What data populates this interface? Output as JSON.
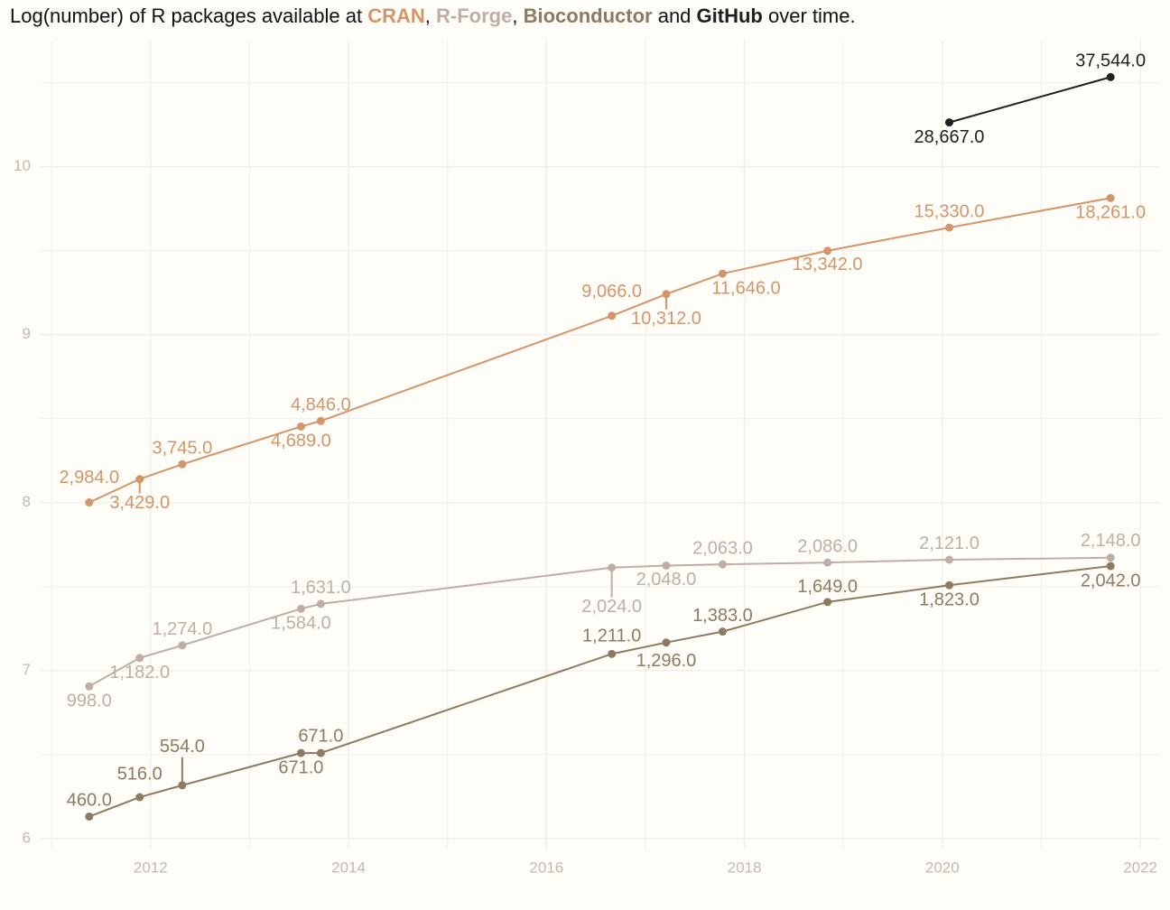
{
  "chart_data": {
    "type": "line",
    "title": [
      "Log(number) of R packages available at ",
      ", ",
      ", ",
      " and ",
      " over time."
    ],
    "xlim": [
      2010.88,
      2022.2
    ],
    "ylim": [
      5.94,
      10.75
    ],
    "xticks": [
      2012,
      2014,
      2016,
      2018,
      2020,
      2022
    ],
    "yticks": [
      6,
      7,
      8,
      9,
      10
    ],
    "grid": true,
    "series": [
      {
        "name": "CRAN",
        "color": "#d4956a",
        "x": [
          2011.38,
          2011.89,
          2012.32,
          2013.52,
          2013.72,
          2016.66,
          2017.21,
          2017.78,
          2018.84,
          2020.07,
          2021.7
        ],
        "values": [
          8.001,
          8.14,
          8.228,
          8.453,
          8.486,
          9.112,
          9.241,
          9.363,
          9.499,
          9.637,
          9.813
        ],
        "value_labels": [
          "2,984.0",
          "3,429.0",
          "3,745.0",
          "4,689.0",
          "4,846.0",
          "9,066.0",
          "10,312.0",
          "11,646.0",
          "13,342.0",
          "15,330.0",
          "18,261.0"
        ]
      },
      {
        "name": "R-Forge",
        "color": "#bfaea8",
        "x": [
          2011.38,
          2011.89,
          2012.32,
          2013.52,
          2013.72,
          2016.66,
          2017.21,
          2017.78,
          2018.84,
          2020.07,
          2021.7
        ],
        "values": [
          6.906,
          7.075,
          7.15,
          7.368,
          7.397,
          7.613,
          7.625,
          7.632,
          7.643,
          7.66,
          7.672
        ],
        "value_labels": [
          "998.0",
          "1,182.0",
          "1,274.0",
          "1,584.0",
          "1,631.0",
          "2,024.0",
          "2,048.0",
          "2,063.0",
          "2,086.0",
          "2,121.0",
          "2,148.0"
        ]
      },
      {
        "name": "Bioconductor",
        "color": "#8e7a62",
        "x": [
          2011.38,
          2011.89,
          2012.32,
          2013.52,
          2013.72,
          2016.66,
          2017.21,
          2017.78,
          2018.84,
          2020.07,
          2021.7
        ],
        "values": [
          6.131,
          6.246,
          6.317,
          6.509,
          6.509,
          7.099,
          7.167,
          7.232,
          7.408,
          7.508,
          7.622
        ],
        "value_labels": [
          "460.0",
          "516.0",
          "554.0",
          "671.0",
          "671.0",
          "1,211.0",
          "1,296.0",
          "1,383.0",
          "1,649.0",
          "1,823.0",
          "2,042.0"
        ]
      },
      {
        "name": "GitHub",
        "color": "#1f1f1f",
        "x": [
          2020.07,
          2021.7
        ],
        "values": [
          10.263,
          10.533
        ],
        "value_labels": [
          "28,667.0",
          "37,544.0"
        ]
      }
    ]
  }
}
